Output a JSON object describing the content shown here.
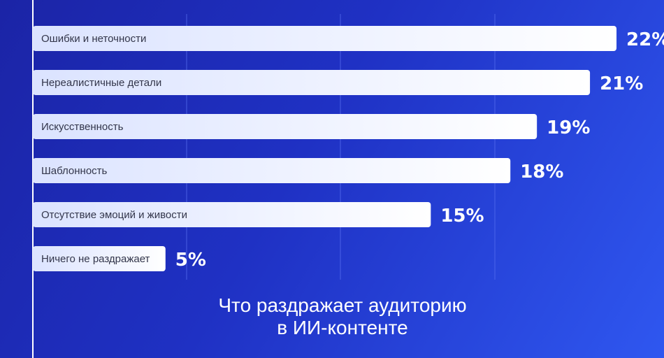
{
  "chart_data": {
    "type": "bar",
    "orientation": "horizontal",
    "title_lines": [
      "Что раздражает аудиторию",
      "в ИИ-контенте"
    ],
    "categories": [
      "Ошибки и неточности",
      "Нереалистичные детали",
      "Искусственность",
      "Шаблонность",
      "Отсутствие эмоций и живости",
      "Ничего не раздражает"
    ],
    "values": [
      22,
      21,
      19,
      18,
      15,
      5
    ],
    "value_labels": [
      "22%",
      "21%",
      "19%",
      "18%",
      "15%",
      "5%"
    ],
    "xlim": [
      0,
      23
    ],
    "grid": true,
    "legend": "none"
  },
  "colors": {
    "bar_start": "#dbe3ff",
    "bar_end": "#ffffff",
    "label_text": "#33364a",
    "value_text": "#ffffff",
    "gridline": "#5a72f2",
    "axis": "#ffffff"
  }
}
